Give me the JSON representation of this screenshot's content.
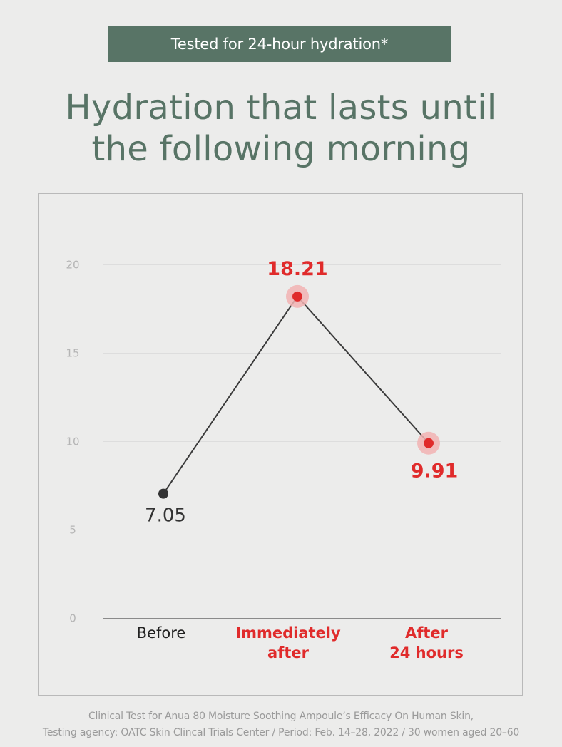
{
  "banner": "Tested for 24-hour hydration*",
  "title": [
    "Hydration that lasts until",
    "the following morning"
  ],
  "chart_data": {
    "type": "line",
    "categories": [
      "Before",
      "Immediately after",
      "After 24 hours"
    ],
    "category_lines": [
      [
        "Before"
      ],
      [
        "Immediately",
        "after"
      ],
      [
        "After",
        "24 hours"
      ]
    ],
    "values": [
      7.05,
      18.21,
      9.91
    ],
    "labels": [
      "7.05",
      "18.21",
      "9.91"
    ],
    "highlighted": [
      false,
      true,
      true
    ],
    "yticks": [
      0,
      5,
      10,
      15,
      20
    ],
    "ylim": [
      0,
      20
    ],
    "grid": true,
    "colors": {
      "line": "#3b3b3b",
      "base_point": "#333333",
      "highlight": "#e02b2b",
      "highlight_halo": "#f2b3b3",
      "axis_text": "#b5b5b5",
      "grid": "#dddddd"
    }
  },
  "footnote": [
    "Clinical Test for Anua 80 Moisture Soothing Ampoule’s Efficacy On Human Skin,",
    "Testing agency: OATC Skin Clincal Trials Center / Period: Feb. 14–28, 2022 / 30 women aged 20–60"
  ]
}
